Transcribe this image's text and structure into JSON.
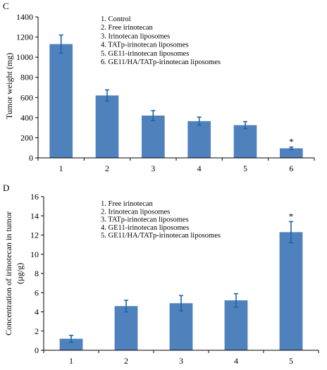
{
  "chart_data": [
    {
      "type": "bar",
      "panel_label": "C",
      "ylabel": "Tumor weight (mg)",
      "xlabel": "",
      "categories": [
        "1",
        "2",
        "3",
        "4",
        "5",
        "6"
      ],
      "values": [
        1130,
        620,
        420,
        365,
        325,
        95
      ],
      "errors": [
        90,
        55,
        50,
        40,
        35,
        12
      ],
      "ylim": [
        0,
        1400
      ],
      "yticks": [
        "0",
        "200",
        "400",
        "600",
        "800",
        "1000",
        "1200",
        "1400"
      ],
      "legend": [
        "1. Control",
        "2. Free irinotecan",
        "3. Irinotecan liposomes",
        "4. TATp-irinotecan liposomes",
        "5. GE11-irinotecan liposomes",
        "6. GE11/HA/TATp-irinotecan liposomes"
      ],
      "annotations": [
        {
          "category_index": 5,
          "text": "*"
        }
      ],
      "grid": false,
      "bar_color": "#4f81bd",
      "error_color": "#1f63a8"
    },
    {
      "type": "bar",
      "panel_label": "D",
      "ylabel_lines": [
        "Concentration of irinotecan in tumor",
        "(µg/g)"
      ],
      "xlabel": "",
      "categories": [
        "1",
        "2",
        "3",
        "4",
        "5"
      ],
      "values": [
        1.2,
        4.6,
        4.9,
        5.2,
        12.3
      ],
      "errors": [
        0.35,
        0.6,
        0.8,
        0.7,
        1.1
      ],
      "ylim": [
        0,
        16
      ],
      "yticks": [
        "0",
        "2",
        "4",
        "6",
        "8",
        "10",
        "12",
        "14",
        "16"
      ],
      "legend": [
        "1. Free irinotecan",
        "2. Irinotecan liposomes",
        "3. TATp-irinotecan liposomes",
        "4. GE11-irinotecan liposomes",
        "5. GE11/HA/TATp-irinotecan liposomes"
      ],
      "annotations": [
        {
          "category_index": 4,
          "text": "*"
        }
      ],
      "grid": false,
      "bar_color": "#4f81bd",
      "error_color": "#1f63a8"
    }
  ]
}
